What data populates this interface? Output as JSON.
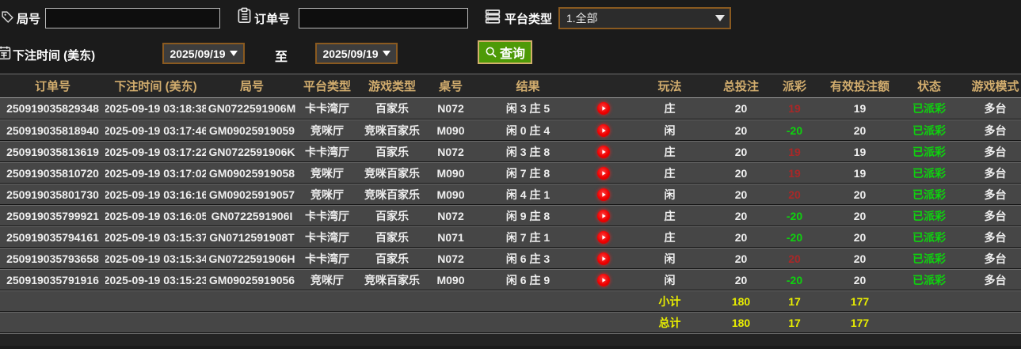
{
  "filters": {
    "round_label": "局号",
    "round_value": "",
    "order_label": "订单号",
    "order_value": "",
    "platform_label": "平台类型",
    "platform_value": "1.全部",
    "bet_time_label": "下注时间 (美东)",
    "date_from": "2025/09/19",
    "to_label": "至",
    "date_to": "2025/09/19",
    "query_label": "查询"
  },
  "table": {
    "columns": [
      "订单号",
      "下注时间 (美东)",
      "局号",
      "平台类型",
      "游戏类型",
      "桌号",
      "结果",
      "",
      "玩法",
      "总投注",
      "派彩",
      "有效投注额",
      "状态",
      "游戏模式"
    ],
    "rows": [
      {
        "order_no": "250919035829348",
        "bet_time": "2025-09-19 03:18:38",
        "round_no": "GN0722591906M",
        "platform": "卡卡湾厅",
        "game_type": "百家乐",
        "table_no": "N072",
        "result": "闲 3 庄 5",
        "play": "庄",
        "total_bet": "20",
        "payout": "19",
        "payout_negative": false,
        "valid_bet": "19",
        "status": "已派彩",
        "mode": "多台"
      },
      {
        "order_no": "250919035818940",
        "bet_time": "2025-09-19 03:17:46",
        "round_no": "GM09025919059",
        "platform": "竞咪厅",
        "game_type": "竞咪百家乐",
        "table_no": "M090",
        "result": "闲 0 庄 4",
        "play": "闲",
        "total_bet": "20",
        "payout": "-20",
        "payout_negative": true,
        "valid_bet": "20",
        "status": "已派彩",
        "mode": "多台"
      },
      {
        "order_no": "250919035813619",
        "bet_time": "2025-09-19 03:17:22",
        "round_no": "GN0722591906K",
        "platform": "卡卡湾厅",
        "game_type": "百家乐",
        "table_no": "N072",
        "result": "闲 3 庄 8",
        "play": "庄",
        "total_bet": "20",
        "payout": "19",
        "payout_negative": false,
        "valid_bet": "19",
        "status": "已派彩",
        "mode": "多台"
      },
      {
        "order_no": "250919035810720",
        "bet_time": "2025-09-19 03:17:02",
        "round_no": "GM09025919058",
        "platform": "竞咪厅",
        "game_type": "竞咪百家乐",
        "table_no": "M090",
        "result": "闲 7 庄 8",
        "play": "庄",
        "total_bet": "20",
        "payout": "19",
        "payout_negative": false,
        "valid_bet": "19",
        "status": "已派彩",
        "mode": "多台"
      },
      {
        "order_no": "250919035801730",
        "bet_time": "2025-09-19 03:16:16",
        "round_no": "GM09025919057",
        "platform": "竞咪厅",
        "game_type": "竞咪百家乐",
        "table_no": "M090",
        "result": "闲 4 庄 1",
        "play": "闲",
        "total_bet": "20",
        "payout": "20",
        "payout_negative": false,
        "valid_bet": "20",
        "status": "已派彩",
        "mode": "多台"
      },
      {
        "order_no": "250919035799921",
        "bet_time": "2025-09-19 03:16:05",
        "round_no": "GN0722591906I",
        "platform": "卡卡湾厅",
        "game_type": "百家乐",
        "table_no": "N072",
        "result": "闲 9 庄 8",
        "play": "庄",
        "total_bet": "20",
        "payout": "-20",
        "payout_negative": true,
        "valid_bet": "20",
        "status": "已派彩",
        "mode": "多台"
      },
      {
        "order_no": "250919035794161",
        "bet_time": "2025-09-19 03:15:37",
        "round_no": "GN0712591908T",
        "platform": "卡卡湾厅",
        "game_type": "百家乐",
        "table_no": "N071",
        "result": "闲 7 庄 1",
        "play": "庄",
        "total_bet": "20",
        "payout": "-20",
        "payout_negative": true,
        "valid_bet": "20",
        "status": "已派彩",
        "mode": "多台"
      },
      {
        "order_no": "250919035793658",
        "bet_time": "2025-09-19 03:15:34",
        "round_no": "GN0722591906H",
        "platform": "卡卡湾厅",
        "game_type": "百家乐",
        "table_no": "N072",
        "result": "闲 6 庄 3",
        "play": "闲",
        "total_bet": "20",
        "payout": "20",
        "payout_negative": false,
        "valid_bet": "20",
        "status": "已派彩",
        "mode": "多台"
      },
      {
        "order_no": "250919035791916",
        "bet_time": "2025-09-19 03:15:23",
        "round_no": "GM09025919056",
        "platform": "竞咪厅",
        "game_type": "竞咪百家乐",
        "table_no": "M090",
        "result": "闲 6 庄 9",
        "play": "闲",
        "total_bet": "20",
        "payout": "-20",
        "payout_negative": true,
        "valid_bet": "20",
        "status": "已派彩",
        "mode": "多台"
      }
    ],
    "subtotal": {
      "label": "小计",
      "total_bet": "180",
      "payout": "17",
      "valid_bet": "177"
    },
    "grand_total": {
      "label": "总计",
      "total_bet": "180",
      "payout": "17",
      "valid_bet": "177"
    }
  },
  "colors": {
    "background": "#1b1b1b",
    "row": "#464646",
    "header_text": "#d2ad6e",
    "total_text": "#e9ee00",
    "status_green": "#0ed20e",
    "payout_win_red": "#a82828",
    "payout_loss_green": "#0ed20e",
    "query_green": "#4d9a07",
    "picker_border": "#8a5a20"
  }
}
